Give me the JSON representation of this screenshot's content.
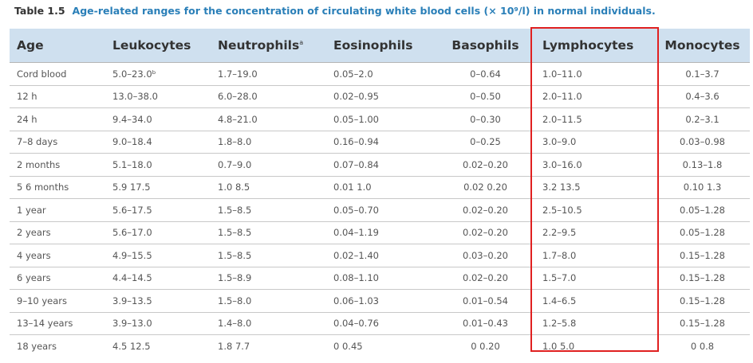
{
  "caption": {
    "number": "Table 1.5",
    "text": "Age-related ranges for the concentration of circulating white blood cells (× 10⁹/l) in normal individuals."
  },
  "headers": {
    "age": "Age",
    "leukocytes": "Leukocytes",
    "neutrophils": "Neutrophils",
    "neutrophils_note": "a",
    "eosinophils": "Eosinophils",
    "basophils": "Basophils",
    "lymphocytes": "Lymphocytes",
    "monocytes": "Monocytes"
  },
  "rows": [
    {
      "age": "Cord blood",
      "leukocytes": "5.0–23.0ᵇ",
      "neutrophils": "1.7–19.0",
      "eosinophils": "0.05–2.0",
      "basophils": "0–0.64",
      "lymphocytes": "1.0–11.0",
      "monocytes": "0.1–3.7"
    },
    {
      "age": "12 h",
      "leukocytes": "13.0–38.0",
      "neutrophils": "6.0–28.0",
      "eosinophils": "0.02–0.95",
      "basophils": "0–0.50",
      "lymphocytes": "2.0–11.0",
      "monocytes": "0.4–3.6"
    },
    {
      "age": "24 h",
      "leukocytes": "9.4–34.0",
      "neutrophils": "4.8–21.0",
      "eosinophils": "0.05–1.00",
      "basophils": "0–0.30",
      "lymphocytes": "2.0–11.5",
      "monocytes": "0.2–3.1"
    },
    {
      "age": "7–8 days",
      "leukocytes": "9.0–18.4",
      "neutrophils": "1.8–8.0",
      "eosinophils": "0.16–0.94",
      "basophils": "0–0.25",
      "lymphocytes": "3.0–9.0",
      "monocytes": "0.03–0.98"
    },
    {
      "age": "2 months",
      "leukocytes": "5.1–18.0",
      "neutrophils": "0.7–9.0",
      "eosinophils": "0.07–0.84",
      "basophils": "0.02–0.20",
      "lymphocytes": "3.0–16.0",
      "monocytes": "0.13–1.8"
    },
    {
      "age": "5 6 months",
      "leukocytes": "5.9 17.5",
      "neutrophils": "1.0 8.5",
      "eosinophils": "0.01 1.0",
      "basophils": "0.02 0.20",
      "lymphocytes": "3.2 13.5",
      "monocytes": "0.10 1.3"
    },
    {
      "age": "1 year",
      "leukocytes": "5.6–17.5",
      "neutrophils": "1.5–8.5",
      "eosinophils": "0.05–0.70",
      "basophils": "0.02–0.20",
      "lymphocytes": "2.5–10.5",
      "monocytes": "0.05–1.28"
    },
    {
      "age": "2 years",
      "leukocytes": "5.6–17.0",
      "neutrophils": "1.5–8.5",
      "eosinophils": "0.04–1.19",
      "basophils": "0.02–0.20",
      "lymphocytes": "2.2–9.5",
      "monocytes": "0.05–1.28"
    },
    {
      "age": "4 years",
      "leukocytes": "4.9–15.5",
      "neutrophils": "1.5–8.5",
      "eosinophils": "0.02–1.40",
      "basophils": "0.03–0.20",
      "lymphocytes": "1.7–8.0",
      "monocytes": "0.15–1.28"
    },
    {
      "age": "6 years",
      "leukocytes": "4.4–14.5",
      "neutrophils": "1.5–8.9",
      "eosinophils": "0.08–1.10",
      "basophils": "0.02–0.20",
      "lymphocytes": "1.5–7.0",
      "monocytes": "0.15–1.28"
    },
    {
      "age": "9–10 years",
      "leukocytes": "3.9–13.5",
      "neutrophils": "1.5–8.0",
      "eosinophils": "0.06–1.03",
      "basophils": "0.01–0.54",
      "lymphocytes": "1.4–6.5",
      "monocytes": "0.15–1.28"
    },
    {
      "age": "13–14 years",
      "leukocytes": "3.9–13.0",
      "neutrophils": "1.4–8.0",
      "eosinophils": "0.04–0.76",
      "basophils": "0.01–0.43",
      "lymphocytes": "1.2–5.8",
      "monocytes": "0.15–1.28"
    },
    {
      "age": "18 years",
      "leukocytes": "4.5 12.5",
      "neutrophils": "1.8 7.7",
      "eosinophils": "0 0.45",
      "basophils": "0 0.20",
      "lymphocytes": "1.0 5.0",
      "monocytes": "0 0.8"
    }
  ],
  "highlight": {
    "column": "Lymphocytes",
    "color": "#e02020"
  },
  "colors": {
    "caption": "#2a7fb8",
    "header_bg": "#cfe0ef"
  }
}
